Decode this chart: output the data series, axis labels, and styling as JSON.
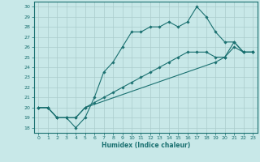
{
  "xlabel": "Humidex (Indice chaleur)",
  "ylabel": "",
  "xlim": [
    -0.5,
    23.5
  ],
  "ylim": [
    17.5,
    30.5
  ],
  "xticks": [
    0,
    1,
    2,
    3,
    4,
    5,
    6,
    7,
    8,
    9,
    10,
    11,
    12,
    13,
    14,
    15,
    16,
    17,
    18,
    19,
    20,
    21,
    22,
    23
  ],
  "yticks": [
    18,
    19,
    20,
    21,
    22,
    23,
    24,
    25,
    26,
    27,
    28,
    29,
    30
  ],
  "bg_color": "#c8e8e8",
  "grid_color": "#aacccc",
  "line_color": "#1a7070",
  "lines": [
    {
      "x": [
        0,
        1,
        2,
        3,
        4,
        5,
        6,
        7,
        8,
        9,
        10,
        11,
        12,
        13,
        14,
        15,
        16,
        17,
        18,
        19,
        20,
        21,
        22,
        23
      ],
      "y": [
        20,
        20,
        19,
        19,
        18,
        19,
        21,
        23.5,
        24.5,
        26,
        27.5,
        27.5,
        28,
        28,
        28.5,
        28,
        28.5,
        30,
        29,
        27.5,
        26.5,
        26.5,
        25.5,
        25.5
      ]
    },
    {
      "x": [
        0,
        1,
        2,
        3,
        4,
        5,
        19,
        20,
        21,
        22,
        23
      ],
      "y": [
        20,
        20,
        19,
        19,
        19,
        20,
        24.5,
        25,
        26.5,
        25.5,
        25.5
      ]
    },
    {
      "x": [
        0,
        1,
        2,
        3,
        4,
        5,
        6,
        7,
        8,
        9,
        10,
        11,
        12,
        13,
        14,
        15,
        16,
        17,
        18,
        19,
        20,
        21,
        22,
        23
      ],
      "y": [
        20,
        20,
        19,
        19,
        19,
        20,
        20.5,
        21,
        21.5,
        22,
        22.5,
        23,
        23.5,
        24,
        24.5,
        25,
        25.5,
        25.5,
        25.5,
        25,
        25,
        26,
        25.5,
        25.5
      ]
    }
  ]
}
